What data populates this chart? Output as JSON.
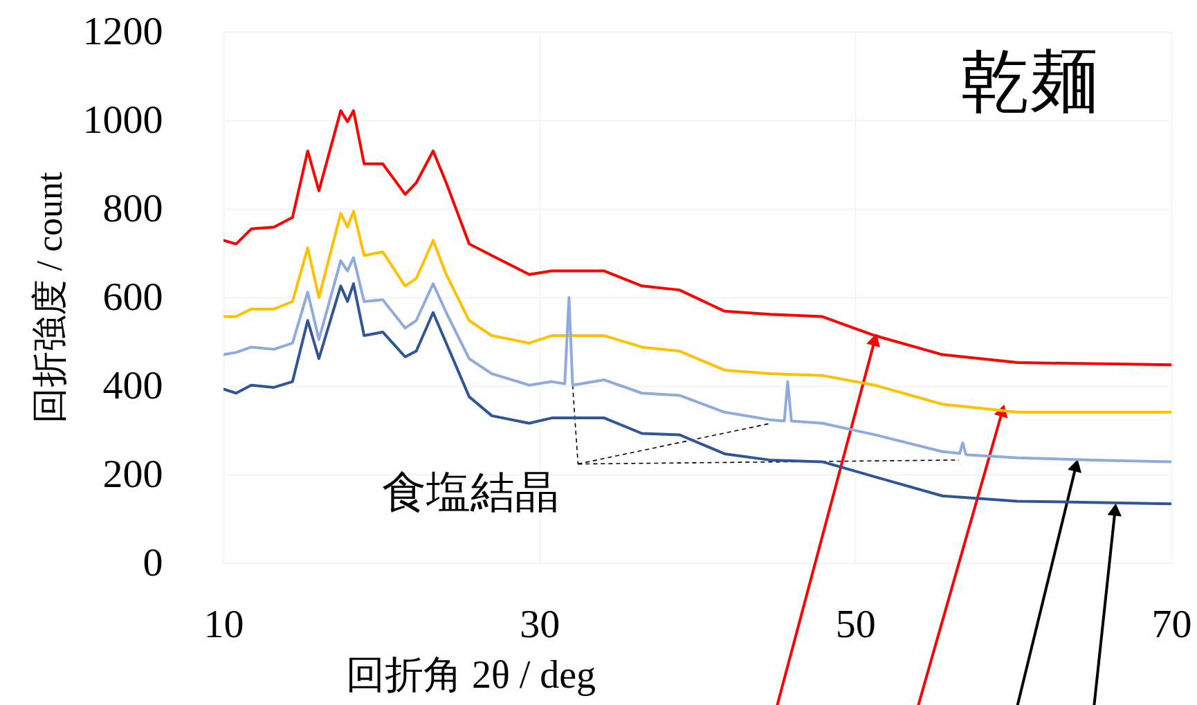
{
  "chart_data": {
    "type": "line",
    "title": "乾麺",
    "xlabel": "回折角 2θ / deg",
    "ylabel": "回折強度 / count",
    "xlim": [
      10,
      70
    ],
    "xticks": [
      10,
      30,
      50,
      70
    ],
    "ylim": [
      0,
      1200
    ],
    "yticks": [
      0,
      200,
      400,
      600,
      800,
      {
        "value": 1000,
        "label": "1000"
      },
      {
        "value": 1200,
        "label": "1200"
      }
    ],
    "grid": true,
    "legend": false,
    "marker": "none",
    "line_style": "solid",
    "annotations": [
      {
        "text": "食塩結晶",
        "x": 32.1,
        "y": 402
      }
    ],
    "series": [
      {
        "color": "#ff0000",
        "x": [
          10,
          10.8,
          11.76,
          13.19,
          14.37,
          15.33,
          16.04,
          17.42,
          17.85,
          18.23,
          18.9,
          20.08,
          21.5,
          22.2,
          23.27,
          24.1,
          25.55,
          26.98,
          29.35,
          30.78,
          34.1,
          36.49,
          38.86,
          41.72,
          44.57,
          47.9,
          51.23,
          55.5,
          60.26,
          70
        ],
        "values": [
          729,
          721,
          755,
          759,
          781,
          931,
          841,
          1022,
          997,
          1022,
          902,
          902,
          833,
          859,
          931,
          859,
          721,
          695,
          652,
          660,
          660,
          626,
          617,
          569,
          562,
          557,
          514,
          471,
          453,
          448
        ]
      },
      {
        "color": "#ffc000",
        "x": [
          10,
          10.8,
          11.76,
          13.19,
          14.37,
          15.33,
          16.04,
          17.42,
          17.85,
          18.23,
          18.9,
          20.08,
          21.5,
          22.2,
          23.27,
          24.1,
          25.55,
          26.98,
          29.35,
          30.78,
          34.1,
          36.49,
          38.86,
          41.72,
          44.57,
          47.9,
          51.23,
          55.5,
          60.26,
          70
        ],
        "values": [
          557,
          557,
          574,
          574,
          591,
          712,
          600,
          790,
          759,
          795,
          695,
          703,
          626,
          643,
          729,
          652,
          548,
          514,
          497,
          514,
          514,
          488,
          479,
          436,
          428,
          424,
          402,
          359,
          341,
          341
        ]
      },
      {
        "color": "#8faadc",
        "x": [
          10,
          10.8,
          11.76,
          13.19,
          14.37,
          15.33,
          16.04,
          17.42,
          17.85,
          18.23,
          18.9,
          20.08,
          21.5,
          22.2,
          23.27,
          24.1,
          25.55,
          26.98,
          29.35,
          30.78,
          31.6,
          31.87,
          32.1,
          34.1,
          36.49,
          38.86,
          41.72,
          44.57,
          45.5,
          45.71,
          45.95,
          47.9,
          51.23,
          55.5,
          56.6,
          56.79,
          57.0,
          60.26,
          65,
          70
        ],
        "values": [
          471,
          476,
          488,
          483,
          497,
          612,
          505,
          683,
          660,
          690,
          591,
          595,
          531,
          548,
          631,
          566,
          462,
          428,
          402,
          410,
          405,
          600,
          402,
          414,
          384,
          379,
          341,
          324,
          321,
          410,
          321,
          316,
          290,
          252,
          248,
          272,
          245,
          238,
          233,
          229
        ]
      },
      {
        "color": "#2f5597",
        "x": [
          10,
          10.8,
          11.76,
          13.19,
          14.37,
          15.33,
          16.04,
          17.42,
          17.85,
          18.23,
          18.9,
          20.08,
          21.5,
          22.2,
          23.27,
          24.1,
          25.55,
          26.98,
          29.35,
          30.78,
          34.1,
          36.49,
          38.86,
          41.72,
          44.57,
          47.9,
          51.23,
          55.5,
          60.26,
          70
        ],
        "values": [
          393,
          384,
          402,
          397,
          410,
          548,
          462,
          626,
          591,
          631,
          514,
          522,
          466,
          479,
          566,
          497,
          376,
          333,
          316,
          328,
          328,
          293,
          290,
          247,
          233,
          229,
          195,
          152,
          140,
          134
        ]
      }
    ]
  }
}
